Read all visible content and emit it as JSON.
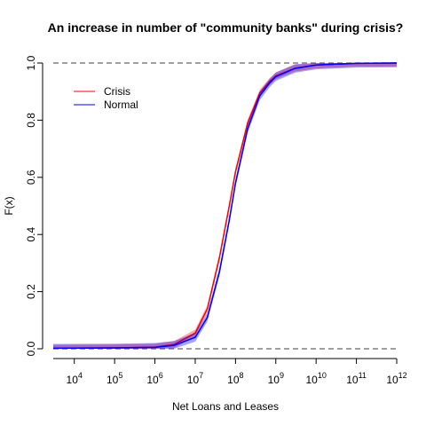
{
  "chart_data": {
    "type": "line",
    "title": "An increase in number of \"community banks\" during crisis?",
    "xlabel": "Net Loans and Leases",
    "ylabel": "F(x)",
    "x_scale": "log10",
    "xlim": [
      3000,
      1000000000000
    ],
    "ylim": [
      0,
      1
    ],
    "x_ticks": [
      {
        "base": "10",
        "exp": "4"
      },
      {
        "base": "10",
        "exp": "5"
      },
      {
        "base": "10",
        "exp": "6"
      },
      {
        "base": "10",
        "exp": "7"
      },
      {
        "base": "10",
        "exp": "8"
      },
      {
        "base": "10",
        "exp": "9"
      },
      {
        "base": "10",
        "exp": "10"
      },
      {
        "base": "10",
        "exp": "11"
      },
      {
        "base": "10",
        "exp": "12"
      }
    ],
    "y_ticks": [
      "0.0",
      "0.2",
      "0.4",
      "0.6",
      "0.8",
      "1.0"
    ],
    "reference_lines": [
      0,
      1
    ],
    "legend": {
      "position": "top-left",
      "entries": [
        {
          "name": "Crisis",
          "color": "#ff0000"
        },
        {
          "name": "Normal",
          "color": "#0000ff"
        }
      ]
    },
    "series": [
      {
        "name": "Crisis",
        "color": "#ff0000",
        "x": [
          3000,
          100000,
          1000000,
          3000000,
          10000000,
          20000000,
          40000000,
          70000000,
          100000000,
          200000000,
          400000000,
          700000000,
          1000000000,
          3000000000,
          10000000000,
          100000000000,
          1000000000000
        ],
        "y": [
          0.002,
          0.003,
          0.006,
          0.015,
          0.055,
          0.14,
          0.32,
          0.5,
          0.62,
          0.79,
          0.895,
          0.935,
          0.955,
          0.982,
          0.993,
          0.999,
          1.0
        ],
        "band": 0.012
      },
      {
        "name": "Normal",
        "color": "#0000ff",
        "x": [
          3000,
          100000,
          1000000,
          3000000,
          10000000,
          20000000,
          40000000,
          70000000,
          100000000,
          200000000,
          400000000,
          700000000,
          1000000000,
          3000000000,
          10000000000,
          100000000000,
          1000000000000
        ],
        "y": [
          0.002,
          0.003,
          0.005,
          0.012,
          0.04,
          0.11,
          0.27,
          0.45,
          0.58,
          0.77,
          0.885,
          0.93,
          0.952,
          0.981,
          0.993,
          0.999,
          1.0
        ],
        "band": 0.015
      }
    ]
  }
}
